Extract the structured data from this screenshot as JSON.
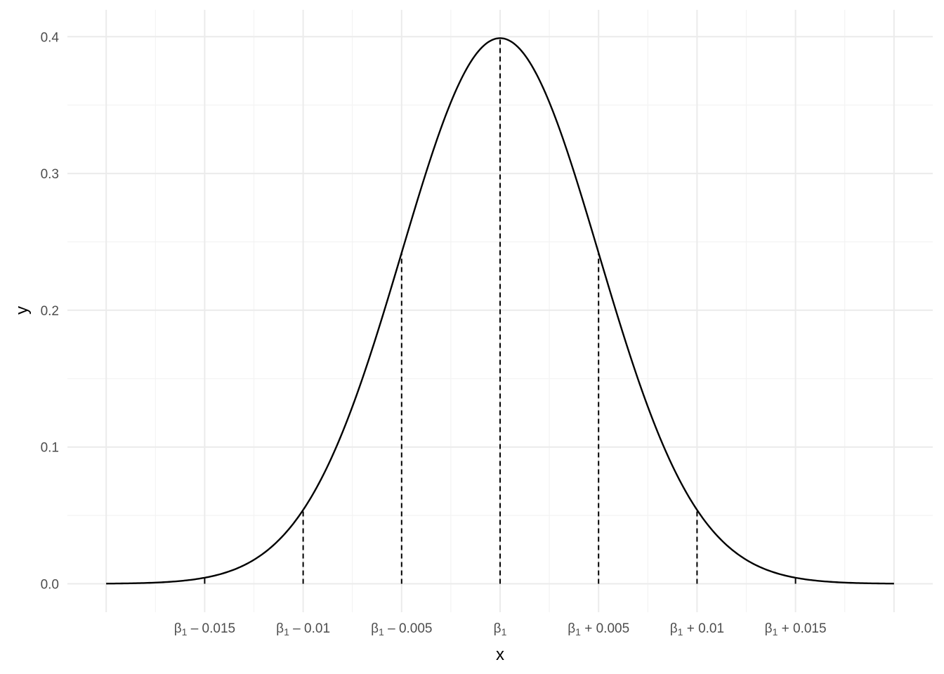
{
  "chart_data": {
    "type": "line",
    "title": "",
    "xlabel": "x",
    "ylabel": "y",
    "xlim": [
      -4,
      4
    ],
    "ylim": [
      0,
      0.4
    ],
    "grid": true,
    "legend": "none",
    "y_ticks": [
      0.0,
      0.1,
      0.2,
      0.3,
      0.4
    ],
    "y_tick_labels": [
      "0.0",
      "0.1",
      "0.2",
      "0.3",
      "0.4"
    ],
    "x_ticks": [
      {
        "x": -3,
        "base": "β",
        "sub": "1",
        "suffix": " – 0.015"
      },
      {
        "x": -2,
        "base": "β",
        "sub": "1",
        "suffix": " – 0.01"
      },
      {
        "x": -1,
        "base": "β",
        "sub": "1",
        "suffix": " – 0.005"
      },
      {
        "x": 0,
        "base": "β",
        "sub": "1",
        "suffix": ""
      },
      {
        "x": 1,
        "base": "β",
        "sub": "1",
        "suffix": " + 0.005"
      },
      {
        "x": 2,
        "base": "β",
        "sub": "1",
        "suffix": " + 0.01"
      },
      {
        "x": 3,
        "base": "β",
        "sub": "1",
        "suffix": " + 0.015"
      }
    ],
    "series": [
      {
        "values_description": "standard normal density curve",
        "x": [
          -4,
          -3.5,
          -3,
          -2.5,
          -2,
          -1.5,
          -1,
          -0.5,
          0,
          0.5,
          1,
          1.5,
          2,
          2.5,
          3,
          3.5,
          4
        ],
        "y": [
          0.0001,
          0.0009,
          0.0044,
          0.0175,
          0.054,
          0.1295,
          0.242,
          0.3521,
          0.3989,
          0.3521,
          0.242,
          0.1295,
          0.054,
          0.0175,
          0.0044,
          0.0009,
          0.0001
        ]
      }
    ],
    "vertical_dashed_lines": [
      {
        "x": -2,
        "y_top": 0.054
      },
      {
        "x": -1,
        "y_top": 0.242
      },
      {
        "x": 0,
        "y_top": 0.3989
      },
      {
        "x": 1,
        "y_top": 0.242
      },
      {
        "x": 2,
        "y_top": 0.054
      }
    ],
    "tail_ticks": [
      {
        "x": -3,
        "y_top": 0.0044
      },
      {
        "x": 3,
        "y_top": 0.0044
      }
    ],
    "colors": {
      "curve": "#000000",
      "grid_major": "#ebebeb",
      "grid_minor": "#f3f3f3",
      "tick_text": "#4d4d4d"
    }
  }
}
